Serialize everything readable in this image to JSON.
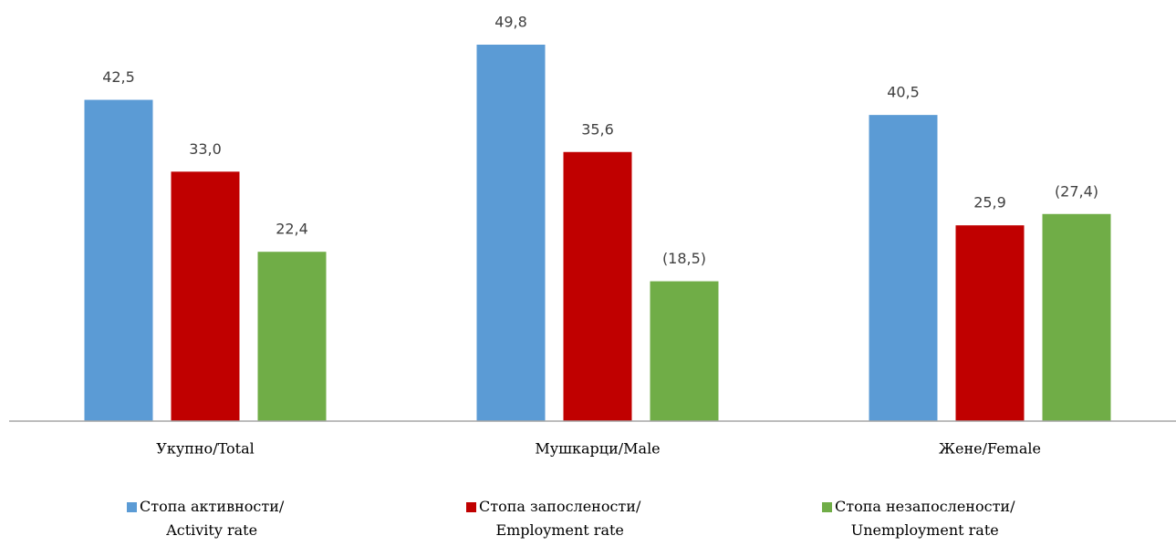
{
  "chart_data": {
    "type": "bar",
    "categories": [
      "Укупно/Total",
      "Мушкарци/Male",
      "Жене/Female"
    ],
    "series": [
      {
        "name": "Стопа активности/\nActivity rate",
        "color": "#5b9bd5",
        "values": [
          42.5,
          49.8,
          40.5
        ],
        "value_labels": [
          "42,5",
          "49,8",
          "40,5"
        ]
      },
      {
        "name": "Стопа запослености/\nEmployment rate",
        "color": "#c00000",
        "values": [
          33.0,
          35.6,
          25.9
        ],
        "value_labels": [
          "33,0",
          "35,6",
          "25,9"
        ]
      },
      {
        "name": "Стопа незапослености/\nUnemployment rate",
        "color": "#70ad47",
        "values": [
          22.4,
          18.5,
          27.4
        ],
        "value_labels": [
          "22,4",
          "(18,5)",
          "(27,4)"
        ]
      }
    ]
  }
}
